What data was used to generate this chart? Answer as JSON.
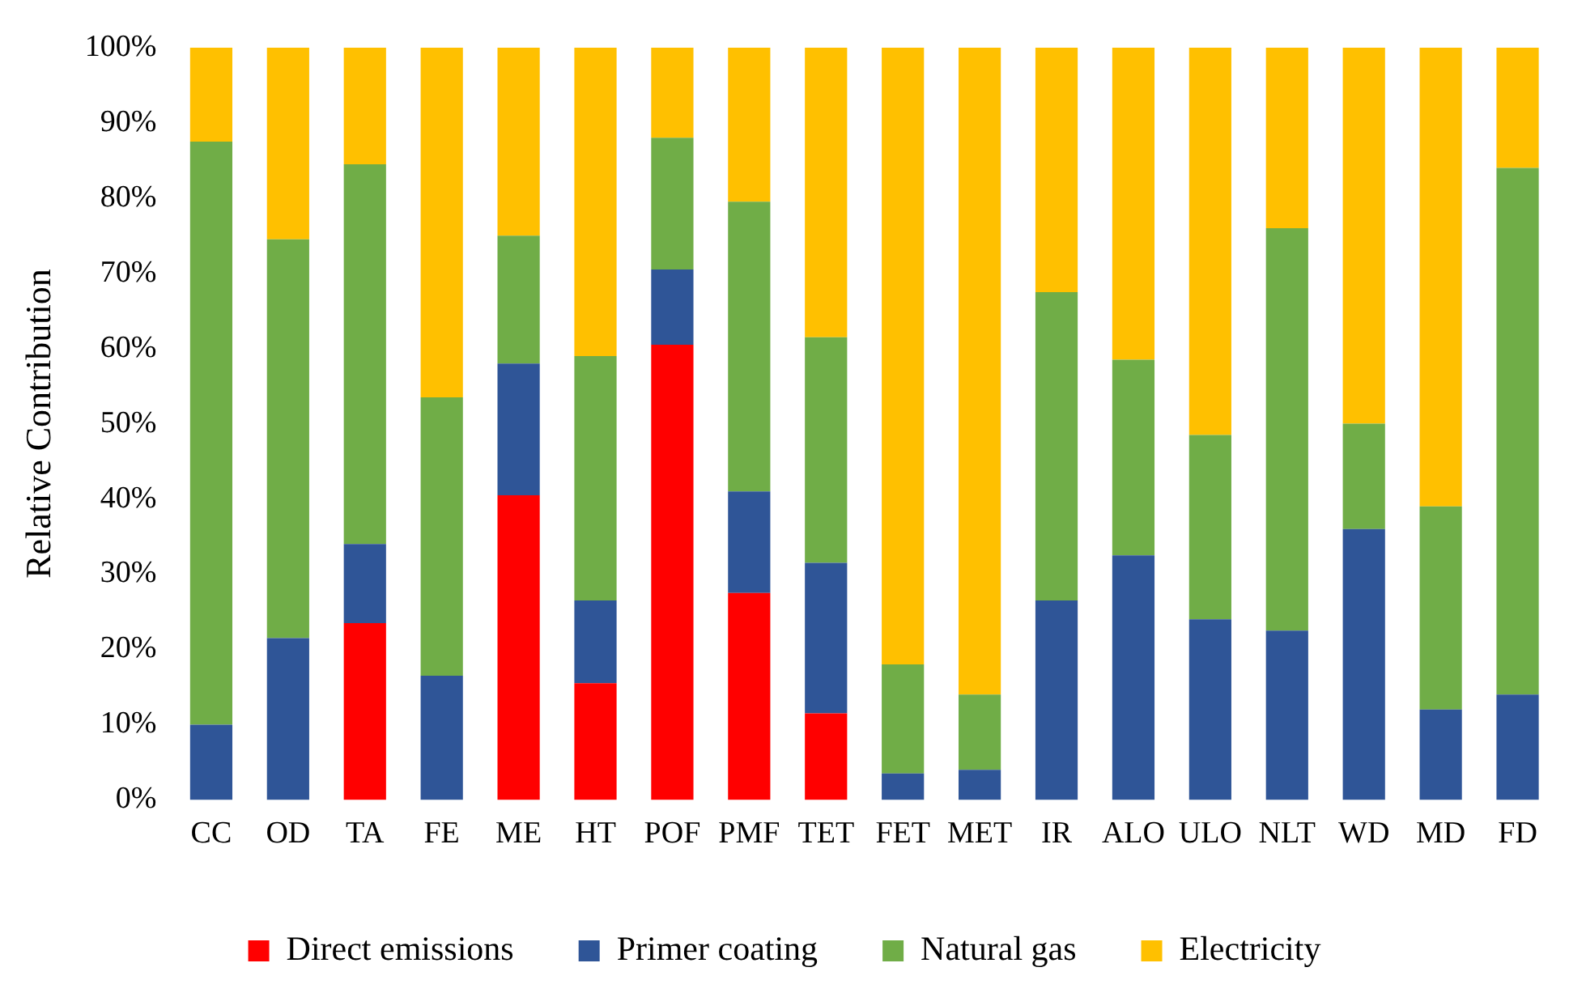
{
  "chart_data": {
    "type": "bar",
    "stacked": true,
    "ylabel": "Relative Contribution",
    "categories": [
      "CC",
      "OD",
      "TA",
      "FE",
      "ME",
      "HT",
      "POF",
      "PMF",
      "TET",
      "FET",
      "MET",
      "IR",
      "ALO",
      "ULO",
      "NLT",
      "WD",
      "MD",
      "FD"
    ],
    "series": [
      {
        "name": "Direct emissions",
        "color": "#ff0000",
        "values": [
          0,
          0,
          23.5,
          0,
          40.5,
          15.5,
          60.5,
          27.5,
          11.5,
          0,
          0,
          0,
          0,
          0,
          0,
          0,
          0,
          0
        ]
      },
      {
        "name": "Primer coating",
        "color": "#2f5597",
        "values": [
          10,
          21.5,
          10.5,
          16.5,
          17.5,
          11,
          10,
          13.5,
          20,
          3.5,
          4,
          26.5,
          32.5,
          24,
          22.5,
          36,
          12,
          14
        ]
      },
      {
        "name": "Natural gas",
        "color": "#70ad47",
        "values": [
          77.5,
          53,
          50.5,
          37,
          17,
          32.5,
          17.5,
          38.5,
          30,
          14.5,
          10,
          41,
          26,
          24.5,
          53.5,
          14,
          27,
          70
        ]
      },
      {
        "name": "Electricity",
        "color": "#ffc000",
        "values": [
          12.5,
          25.5,
          15.5,
          46.5,
          25,
          41,
          12,
          20.5,
          38.5,
          82,
          86,
          32.5,
          41.5,
          51.5,
          24,
          50,
          61,
          16
        ]
      }
    ],
    "ylim": [
      0,
      100
    ],
    "yticks": [
      {
        "value": 0,
        "label": "0%"
      },
      {
        "value": 10,
        "label": "10%"
      },
      {
        "value": 20,
        "label": "20%"
      },
      {
        "value": 30,
        "label": "30%"
      },
      {
        "value": 40,
        "label": "40%"
      },
      {
        "value": 50,
        "label": "50%"
      },
      {
        "value": 60,
        "label": "60%"
      },
      {
        "value": 70,
        "label": "70%"
      },
      {
        "value": 80,
        "label": "80%"
      },
      {
        "value": 90,
        "label": "90%"
      },
      {
        "value": 100,
        "label": "100%"
      }
    ],
    "grid": false,
    "legend": "bottom"
  }
}
